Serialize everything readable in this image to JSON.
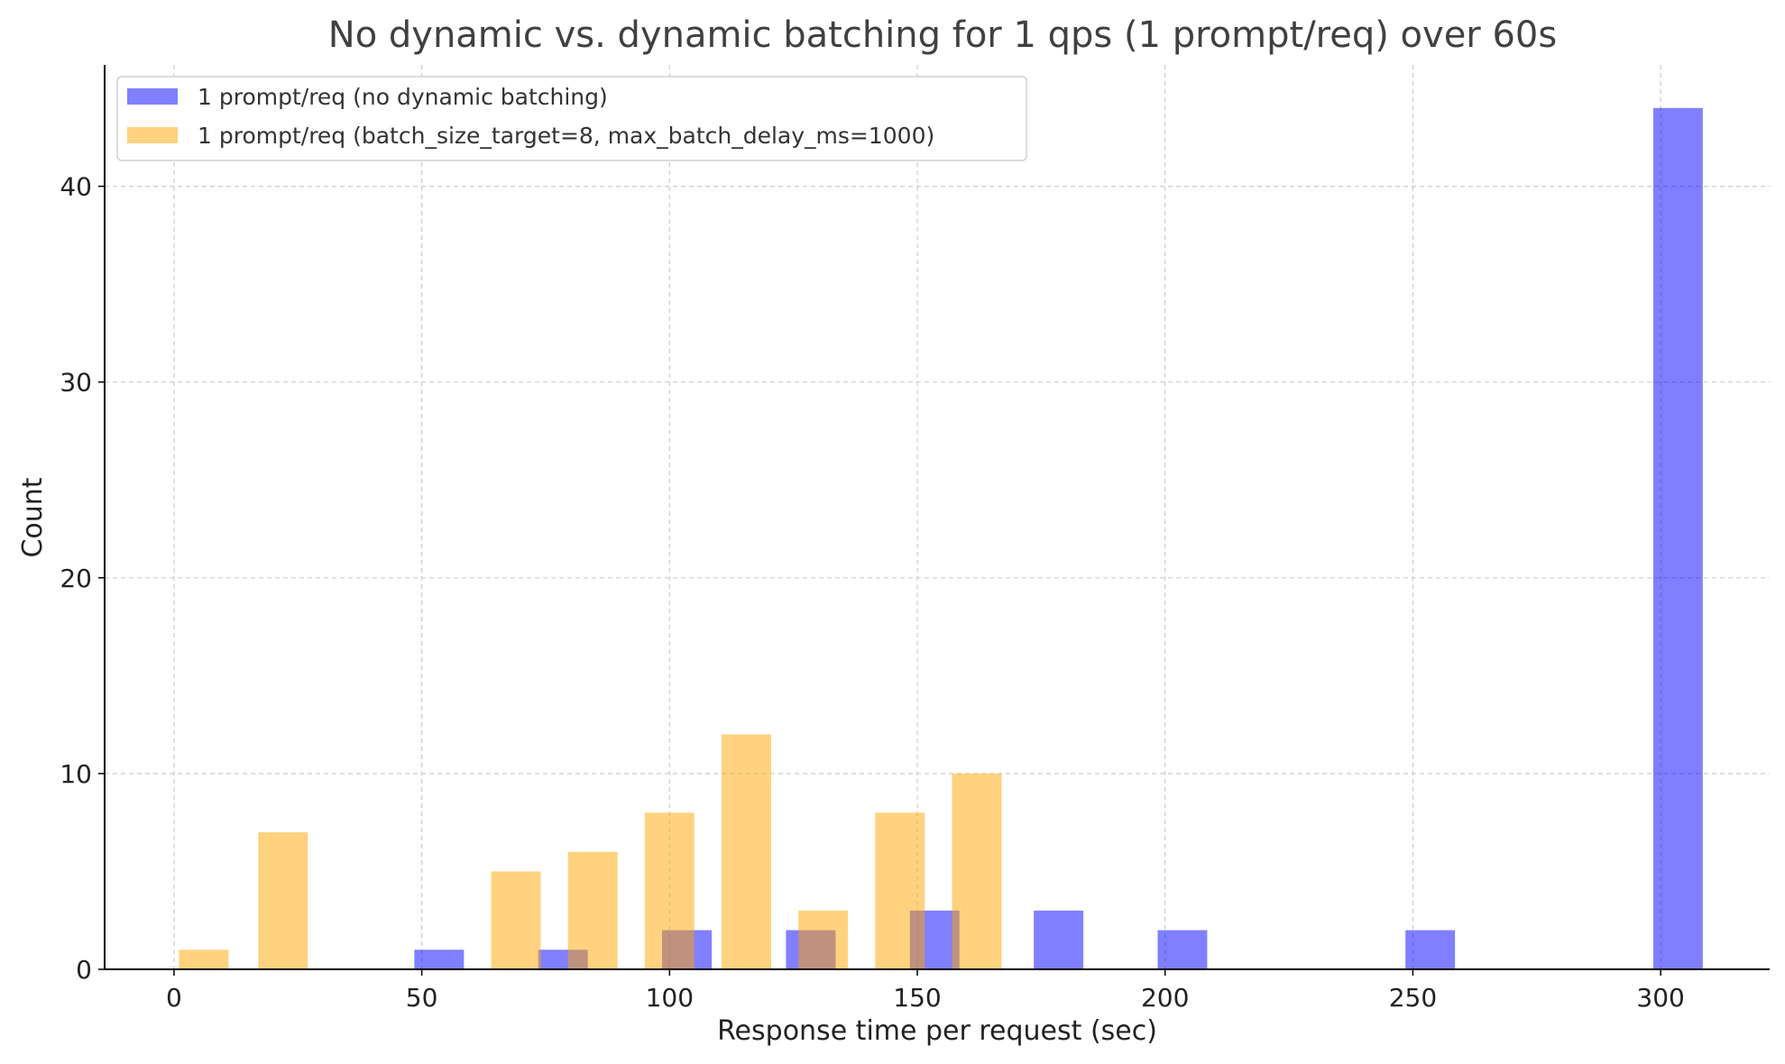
{
  "chart_data": {
    "type": "bar",
    "title": "No dynamic vs. dynamic batching for 1 qps (1 prompt/req) over 60s",
    "xlabel": "Response time per request (sec)",
    "ylabel": "Count",
    "xlim": [
      -14,
      322
    ],
    "ylim": [
      0,
      46.2
    ],
    "xticks": [
      0,
      50,
      100,
      150,
      200,
      250,
      300
    ],
    "yticks": [
      0,
      10,
      20,
      30,
      40
    ],
    "grid": true,
    "legend_position": "top-left",
    "series": [
      {
        "name": "1 prompt/req (no dynamic batching)",
        "color": "#0000ff",
        "opacity": 0.5,
        "bins": [
          {
            "x0": 48.5,
            "x1": 58.5,
            "count": 1
          },
          {
            "x0": 73.5,
            "x1": 83.5,
            "count": 1
          },
          {
            "x0": 98.5,
            "x1": 108.5,
            "count": 2
          },
          {
            "x0": 123.5,
            "x1": 133.5,
            "count": 2
          },
          {
            "x0": 148.5,
            "x1": 158.5,
            "count": 3
          },
          {
            "x0": 173.5,
            "x1": 183.5,
            "count": 3
          },
          {
            "x0": 198.5,
            "x1": 208.5,
            "count": 2
          },
          {
            "x0": 248.5,
            "x1": 258.5,
            "count": 2
          },
          {
            "x0": 298.5,
            "x1": 308.5,
            "count": 44
          }
        ]
      },
      {
        "name": "1 prompt/req (batch_size_target=8, max_batch_delay_ms=1000)",
        "color": "#ffa500",
        "opacity": 0.5,
        "bins": [
          {
            "x0": 1.0,
            "x1": 11.0,
            "count": 1
          },
          {
            "x0": 17.0,
            "x1": 27.0,
            "count": 7
          },
          {
            "x0": 64.0,
            "x1": 74.0,
            "count": 5
          },
          {
            "x0": 79.5,
            "x1": 89.5,
            "count": 6
          },
          {
            "x0": 95.0,
            "x1": 105.0,
            "count": 8
          },
          {
            "x0": 110.5,
            "x1": 120.5,
            "count": 12
          },
          {
            "x0": 126.0,
            "x1": 136.0,
            "count": 3
          },
          {
            "x0": 141.5,
            "x1": 151.5,
            "count": 8
          },
          {
            "x0": 157.0,
            "x1": 167.0,
            "count": 10
          }
        ]
      }
    ]
  }
}
